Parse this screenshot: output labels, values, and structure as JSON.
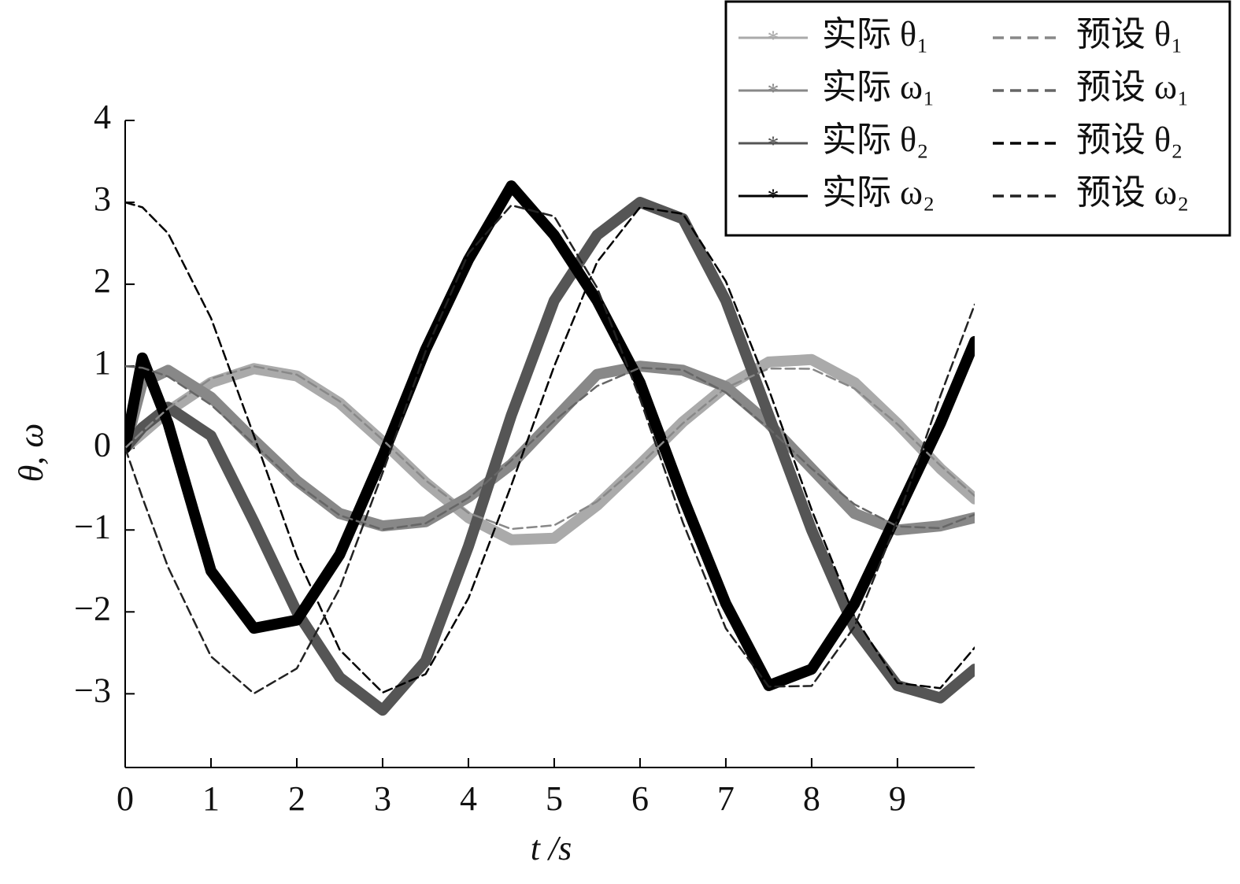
{
  "chart_data": {
    "type": "line",
    "x_label": "t /s",
    "y_label": "θ, ω",
    "x": [
      0,
      0.2,
      0.5,
      1,
      1.5,
      2,
      2.5,
      3,
      3.5,
      4,
      4.5,
      5,
      5.5,
      6,
      6.5,
      7,
      7.5,
      8,
      8.5,
      9,
      9.5,
      9.9
    ],
    "xlim": [
      0,
      9.9
    ],
    "ylim": [
      -3.9,
      4
    ],
    "xticks": [
      0,
      1,
      2,
      3,
      4,
      5,
      6,
      7,
      8,
      9
    ],
    "yticks": [
      {
        "value": -3,
        "label": "−3"
      },
      {
        "value": -2,
        "label": "−2"
      },
      {
        "value": -1,
        "label": "−1"
      },
      0,
      1,
      2,
      3,
      4
    ],
    "legend": "upper right",
    "series": [
      {
        "name": "实际 θ₁",
        "color": "#aaaaaa",
        "style": "solid",
        "values": [
          0,
          0.18,
          0.45,
          0.8,
          0.97,
          0.88,
          0.55,
          0.08,
          -0.42,
          -0.85,
          -1.12,
          -1.1,
          -0.7,
          -0.2,
          0.32,
          0.75,
          1.05,
          1.08,
          0.8,
          0.3,
          -0.25,
          -0.62
        ]
      },
      {
        "name": "实际 ω₁",
        "color": "#888888",
        "style": "solid",
        "values": [
          0,
          0.8,
          0.95,
          0.62,
          0.1,
          -0.4,
          -0.8,
          -0.95,
          -0.9,
          -0.6,
          -0.2,
          0.35,
          0.9,
          1.0,
          0.95,
          0.75,
          0.3,
          -0.25,
          -0.8,
          -1.0,
          -0.95,
          -0.85
        ]
      },
      {
        "name": "实际 θ₂",
        "color": "#555555",
        "style": "solid",
        "values": [
          0,
          0.25,
          0.5,
          0.15,
          -0.9,
          -2.0,
          -2.8,
          -3.2,
          -2.6,
          -1.2,
          0.4,
          1.8,
          2.6,
          3.0,
          2.8,
          1.8,
          0.4,
          -1.0,
          -2.2,
          -2.9,
          -3.05,
          -2.7
        ]
      },
      {
        "name": "实际 ω₂",
        "color": "#000000",
        "style": "solid",
        "values": [
          0,
          1.1,
          0.3,
          -1.5,
          -2.2,
          -2.1,
          -1.3,
          -0.1,
          1.2,
          2.3,
          3.2,
          2.6,
          1.8,
          0.8,
          -0.6,
          -1.9,
          -2.9,
          -2.7,
          -1.9,
          -0.8,
          0.3,
          1.3
        ]
      },
      {
        "name": "预设 θ₁",
        "color": "#888888",
        "style": "dashed",
        "values": [
          0,
          0.201,
          0.485,
          0.848,
          0.999,
          0.897,
          0.571,
          0.101,
          -0.393,
          -0.792,
          -0.988,
          -0.943,
          -0.653,
          -0.201,
          0.303,
          0.734,
          0.971,
          0.968,
          0.727,
          0.292,
          -0.212,
          -0.584
        ]
      },
      {
        "name": "预设 ω₁",
        "color": "#666666",
        "style": "dashed",
        "values": [
          1,
          0.98,
          0.874,
          0.529,
          0.051,
          -0.44,
          -0.821,
          -0.995,
          -0.92,
          -0.611,
          -0.151,
          0.333,
          0.757,
          0.98,
          0.953,
          0.679,
          0.24,
          -0.251,
          -0.687,
          -0.956,
          -0.977,
          -0.812
        ]
      },
      {
        "name": "预设 θ₂",
        "color": "#000000",
        "style": "dashed",
        "values": [
          3,
          2.94,
          2.622,
          1.587,
          0.153,
          -1.32,
          -2.463,
          -2.985,
          -2.76,
          -1.833,
          -0.453,
          0.999,
          2.271,
          2.94,
          2.859,
          2.037,
          0.72,
          -0.753,
          -2.061,
          -2.868,
          -2.931,
          -2.436
        ]
      },
      {
        "name": "预设 ω₂",
        "color": "#222222",
        "style": "dashed",
        "values": [
          0,
          -0.603,
          -1.455,
          -2.544,
          -2.997,
          -2.691,
          -1.713,
          -0.303,
          1.179,
          2.376,
          2.964,
          2.829,
          1.959,
          0.603,
          -0.909,
          -2.202,
          -2.913,
          -2.904,
          -2.181,
          -0.876,
          0.636,
          1.752
        ]
      }
    ]
  }
}
